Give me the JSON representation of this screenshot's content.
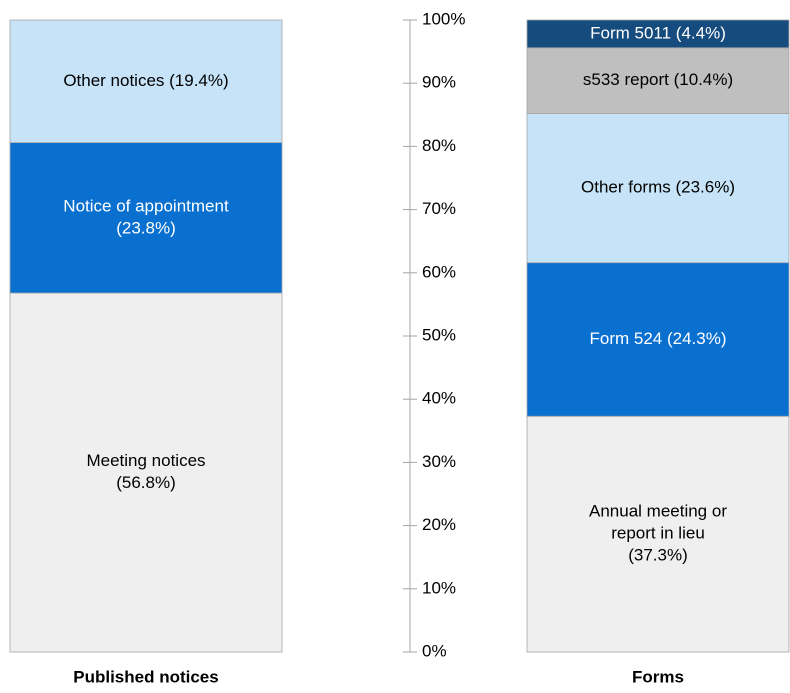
{
  "chart_data": {
    "type": "stacked-bar",
    "ylim": [
      0,
      100
    ],
    "yticks": [
      {
        "value": 0,
        "label": "0%"
      },
      {
        "value": 10,
        "label": "10%"
      },
      {
        "value": 20,
        "label": "20%"
      },
      {
        "value": 30,
        "label": "30%"
      },
      {
        "value": 40,
        "label": "40%"
      },
      {
        "value": 50,
        "label": "50%"
      },
      {
        "value": 60,
        "label": "60%"
      },
      {
        "value": 70,
        "label": "70%"
      },
      {
        "value": 80,
        "label": "80%"
      },
      {
        "value": 90,
        "label": "90%"
      },
      {
        "value": 100,
        "label": "100%"
      }
    ],
    "bars": [
      {
        "category": "Published notices",
        "segments": [
          {
            "label": [
              "Meeting notices",
              "(56.8%)"
            ],
            "value": 56.8,
            "color": "#efefef",
            "text_color": "#000000"
          },
          {
            "label": [
              "Notice of appointment",
              "(23.8%)"
            ],
            "value": 23.8,
            "color": "#0a70cf",
            "text_color": "#ffffff"
          },
          {
            "label": [
              "Other notices (19.4%)"
            ],
            "value": 19.4,
            "color": "#c6e3f8",
            "text_color": "#000000"
          }
        ]
      },
      {
        "category": "Forms",
        "segments": [
          {
            "label": [
              "Annual meeting or",
              "report in lieu",
              "(37.3%)"
            ],
            "value": 37.3,
            "color": "#efefef",
            "text_color": "#000000"
          },
          {
            "label": [
              "Form 524 (24.3%)"
            ],
            "value": 24.3,
            "color": "#0a70cf",
            "text_color": "#ffffff"
          },
          {
            "label": [
              "Other forms (23.6%)"
            ],
            "value": 23.6,
            "color": "#c6e3f8",
            "text_color": "#000000"
          },
          {
            "label": [
              "s533 report (10.4%)"
            ],
            "value": 10.4,
            "color": "#bfbfbf",
            "text_color": "#000000"
          },
          {
            "label": [
              "Form 5011 (4.4%)"
            ],
            "value": 4.4,
            "color": "#164b7d",
            "text_color": "#ffffff"
          }
        ]
      }
    ]
  }
}
